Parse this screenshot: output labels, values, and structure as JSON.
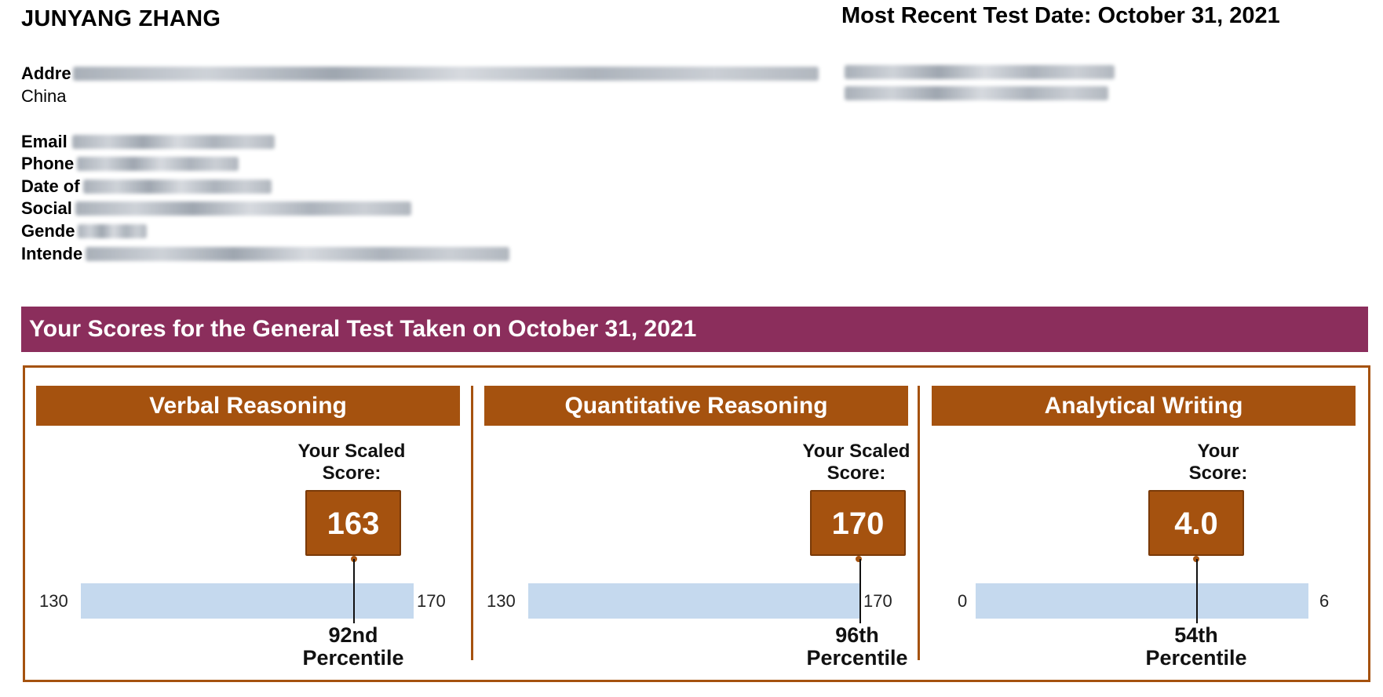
{
  "header": {
    "name": "JUNYANG ZHANG",
    "most_recent_label": "Most Recent Test Date: October 31, 2021"
  },
  "info": {
    "address_label": "Addre",
    "country": "China",
    "email_label": "Email",
    "phone_label": "Phone",
    "dob_label": "Date of",
    "ssn_label": "Social",
    "gender_label": "Gende",
    "major_label": "Intende"
  },
  "banner": {
    "title": "Your Scores for the General Test Taken on October 31, 2021"
  },
  "sections": [
    {
      "title": "Verbal Reasoning",
      "scaled_label_1": "Your Scaled",
      "scaled_label_2": "Score:",
      "score": "163",
      "min": "130",
      "max": "170",
      "percentile_1": "92nd",
      "percentile_2": "Percentile",
      "score_fraction": 0.825
    },
    {
      "title": "Quantitative Reasoning",
      "scaled_label_1": "Your Scaled",
      "scaled_label_2": "Score:",
      "score": "170",
      "min": "130",
      "max": "170",
      "percentile_1": "96th",
      "percentile_2": "Percentile",
      "score_fraction": 1.0
    },
    {
      "title": "Analytical Writing",
      "scaled_label_1": "Your",
      "scaled_label_2": "Score:",
      "score": "4.0",
      "min": "0",
      "max": "6",
      "percentile_1": "54th",
      "percentile_2": "Percentile",
      "score_fraction": 0.667
    }
  ],
  "colors": {
    "banner": "#8b2e5c",
    "section_accent": "#a5520f",
    "bar": "#c5d9ee"
  }
}
